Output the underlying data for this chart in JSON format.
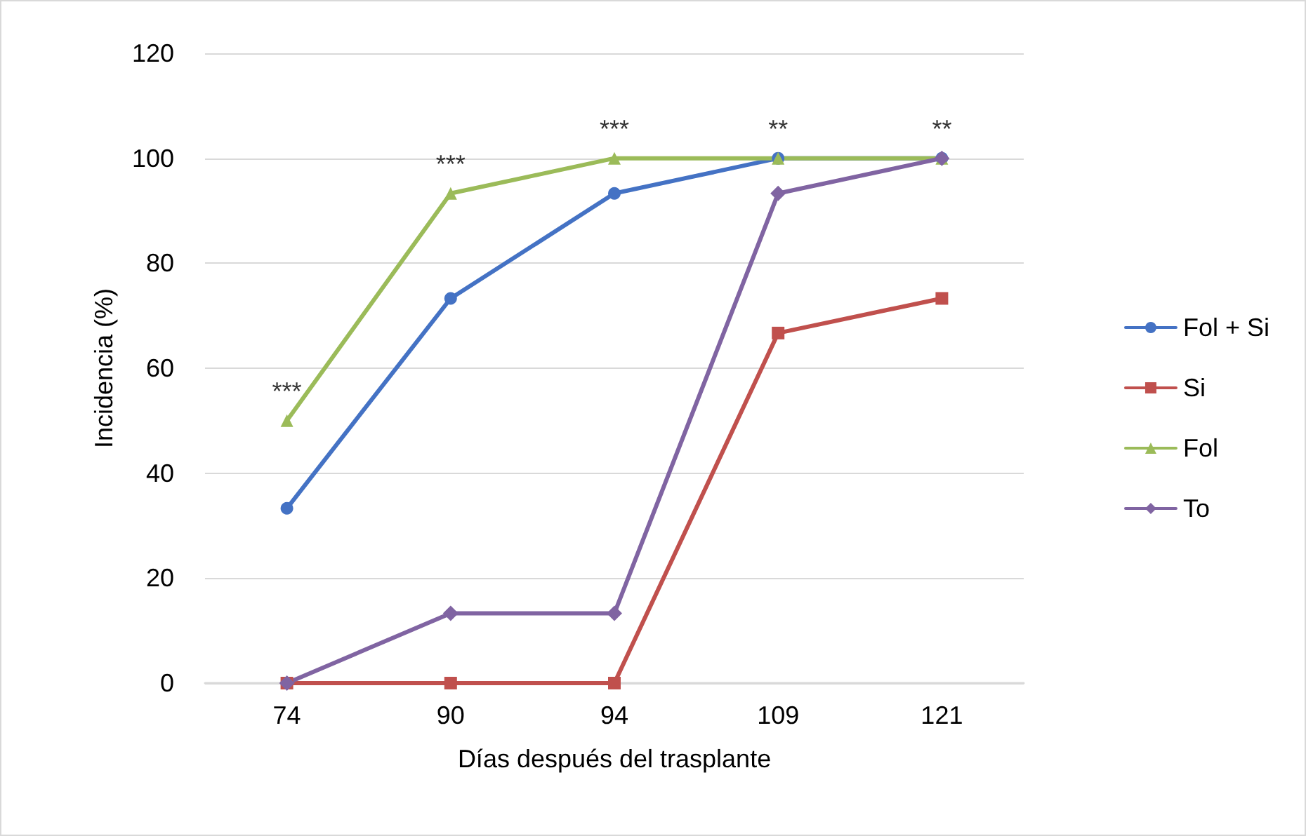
{
  "chart_data": {
    "type": "line",
    "xlabel": "Días después del trasplante",
    "ylabel": "Incidencia (%)",
    "categories": [
      "74",
      "90",
      "94",
      "109",
      "121"
    ],
    "series": [
      {
        "name": "Fol + Si",
        "color": "#4472c4",
        "marker": "circle",
        "values": [
          33.3,
          73.3,
          93.3,
          100,
          100
        ]
      },
      {
        "name": "Si",
        "color": "#c0504d",
        "marker": "square",
        "values": [
          0,
          0,
          0,
          66.7,
          73.3
        ]
      },
      {
        "name": "Fol",
        "color": "#9bbb59",
        "marker": "triangle",
        "values": [
          50,
          93.3,
          100,
          100,
          100
        ]
      },
      {
        "name": "To",
        "color": "#8064a2",
        "marker": "diamond",
        "values": [
          0,
          13.3,
          13.3,
          93.3,
          100
        ]
      }
    ],
    "ylim": [
      0,
      120
    ],
    "yticks": [
      0,
      20,
      40,
      60,
      80,
      100,
      120
    ],
    "grid": "y",
    "legend": "right",
    "line_style": "solid",
    "annotations": [
      "***",
      "***",
      "***",
      "**",
      "**"
    ]
  }
}
